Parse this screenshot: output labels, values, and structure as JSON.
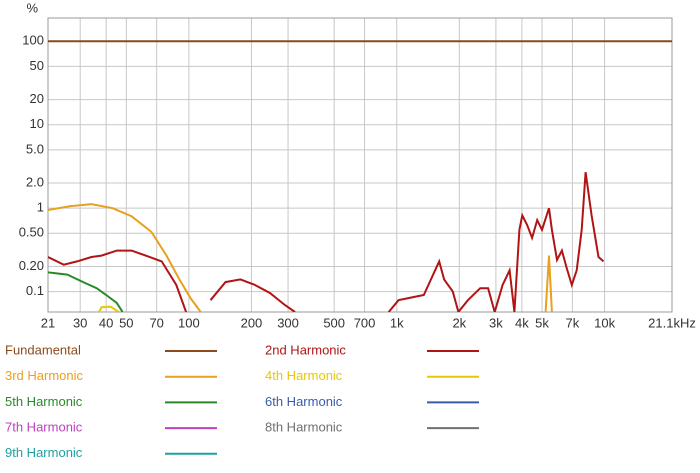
{
  "chart_data": {
    "type": "line",
    "y_label": "%",
    "log_x": true,
    "log_y": true,
    "grid": true,
    "xlim": [
      21,
      21100
    ],
    "ylim": [
      0.057,
      190
    ],
    "xticks": [
      21,
      30,
      40,
      50,
      70,
      100,
      200,
      300,
      500,
      700,
      {
        "value": 1000,
        "label": "1k"
      },
      {
        "value": 2000,
        "label": "2k"
      },
      {
        "value": 3000,
        "label": "3k"
      },
      {
        "value": 4000,
        "label": "4k"
      },
      {
        "value": 5000,
        "label": "5k"
      },
      {
        "value": 7000,
        "label": "7k"
      },
      {
        "value": 10000,
        "label": "10k"
      },
      {
        "value": 21100,
        "label": "21.1kHz"
      }
    ],
    "yticks": [
      100,
      50,
      20,
      10,
      {
        "value": 5,
        "label": "5.0"
      },
      {
        "value": 2,
        "label": "2.0"
      },
      1,
      {
        "value": 0.5,
        "label": "0.50"
      },
      {
        "value": 0.2,
        "label": "0.20"
      },
      0.1
    ],
    "series": [
      {
        "name": "Fundamental",
        "color": "#8b4a1c",
        "x": [
          21,
          21100
        ],
        "values": [
          100,
          100
        ]
      },
      {
        "name": "2nd Harmonic",
        "color": "#b01414",
        "x": [
          21,
          25,
          29,
          34,
          38,
          45,
          53,
          62,
          74,
          87,
          97,
          110,
          127,
          150,
          177,
          208,
          246,
          290,
          324,
          600,
          915,
          1020,
          1200,
          1350,
          1420,
          1530,
          1600,
          1690,
          1860,
          1980,
          2200,
          2520,
          2750,
          2960,
          3230,
          3490,
          3680,
          3890,
          4020,
          4240,
          4480,
          4740,
          5000,
          5400,
          5580,
          5900,
          6230,
          6580,
          6950,
          7340,
          7760,
          8100,
          8660,
          9350,
          9880
        ],
        "values": [
          0.26,
          0.21,
          0.23,
          0.26,
          0.27,
          0.31,
          0.31,
          0.27,
          0.23,
          0.12,
          0.057,
          null,
          0.079,
          0.13,
          0.14,
          0.12,
          0.096,
          0.069,
          0.057,
          null,
          0.057,
          0.079,
          0.086,
          0.091,
          0.12,
          0.18,
          0.23,
          0.14,
          0.1,
          0.057,
          0.079,
          0.11,
          0.11,
          0.057,
          0.12,
          0.18,
          0.057,
          0.55,
          0.82,
          0.63,
          0.44,
          0.72,
          0.55,
          1,
          0.55,
          0.24,
          0.31,
          0.19,
          0.12,
          0.18,
          0.55,
          2.7,
          0.82,
          0.26,
          0.23
        ]
      },
      {
        "name": "3rd Harmonic",
        "color": "#e8a020",
        "x": [
          21,
          27,
          34,
          43,
          53,
          66,
          78,
          90,
          102,
          114,
          2000,
          5200,
          5400,
          5580
        ],
        "values": [
          0.95,
          1.06,
          1.12,
          1,
          0.8,
          0.52,
          0.27,
          0.14,
          0.083,
          0.057,
          null,
          0.057,
          0.27,
          0.057
        ]
      },
      {
        "name": "4th Harmonic",
        "color": "#e8c800",
        "x": [
          37,
          38,
          42,
          46
        ],
        "values": [
          0.057,
          0.065,
          0.066,
          0.057
        ]
      },
      {
        "name": "5th Harmonic",
        "color": "#2a8a2a",
        "x": [
          21,
          26,
          31,
          36,
          40,
          45,
          48
        ],
        "values": [
          0.17,
          0.16,
          0.13,
          0.11,
          0.091,
          0.073,
          0.057
        ]
      },
      {
        "name": "6th Harmonic",
        "color": "#3a5ca8",
        "x": [],
        "values": []
      },
      {
        "name": "7th Harmonic",
        "color": "#c040c0",
        "x": [],
        "values": []
      },
      {
        "name": "8th Harmonic",
        "color": "#707070",
        "x": [],
        "values": []
      },
      {
        "name": "9th Harmonic",
        "color": "#20a0a0",
        "x": [],
        "values": []
      }
    ]
  }
}
